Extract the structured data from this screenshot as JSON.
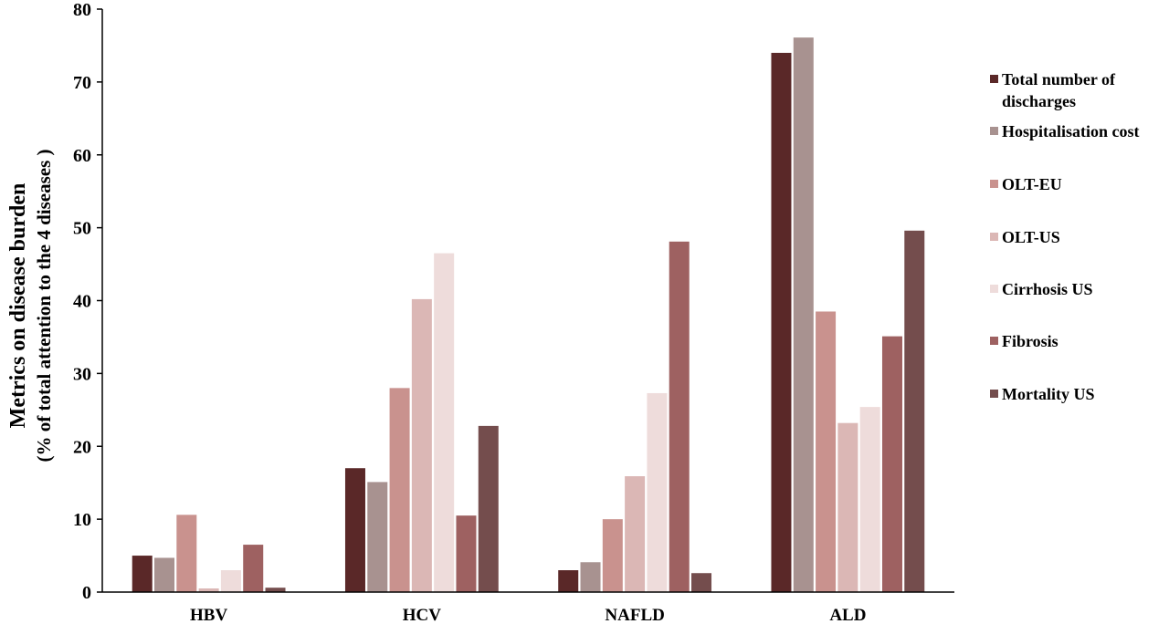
{
  "chart_data": {
    "type": "bar",
    "title": "",
    "xlabel": "",
    "ylabel": "Metrics on disease burden",
    "ylabel_sub": "(% of total attention to the 4 diseases )",
    "ylim": [
      0,
      80
    ],
    "yticks": [
      "0",
      "10",
      "20",
      "30",
      "40",
      "50",
      "60",
      "70",
      "80"
    ],
    "grid": false,
    "legend_position": "right",
    "categories": [
      "HBV",
      "HCV",
      "NAFLD",
      "ALD"
    ],
    "series": [
      {
        "name": "Total number of discharges",
        "name_lines": [
          "Total number of",
          "discharges"
        ],
        "color": "#5a2828",
        "values": [
          5.0,
          17.0,
          3.0,
          74.0
        ]
      },
      {
        "name": "Hospitalisation cost",
        "name_lines": [
          "Hospitalisation cost"
        ],
        "color": "#a89290",
        "values": [
          4.7,
          15.1,
          4.1,
          76.1
        ]
      },
      {
        "name": "OLT-EU",
        "name_lines": [
          "OLT-EU"
        ],
        "color": "#c9928e",
        "values": [
          10.6,
          28.0,
          10.0,
          38.5
        ]
      },
      {
        "name": "OLT-US",
        "name_lines": [
          "OLT-US"
        ],
        "color": "#dbb7b5",
        "values": [
          0.5,
          40.2,
          15.9,
          23.2
        ]
      },
      {
        "name": "Cirrhosis US",
        "name_lines": [
          "Cirrhosis US"
        ],
        "color": "#eedcdb",
        "values": [
          3.0,
          46.5,
          27.3,
          25.4
        ]
      },
      {
        "name": "Fibrosis",
        "name_lines": [
          "Fibrosis"
        ],
        "color": "#9e6161",
        "values": [
          6.5,
          10.5,
          48.1,
          35.1
        ]
      },
      {
        "name": "Mortality US",
        "name_lines": [
          "Mortality US"
        ],
        "color": "#744d4d",
        "values": [
          0.6,
          22.8,
          2.6,
          49.6
        ]
      }
    ]
  }
}
